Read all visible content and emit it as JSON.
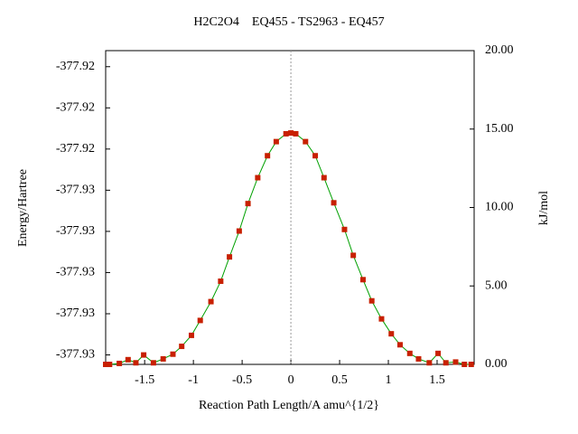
{
  "chart_data": {
    "type": "line",
    "title": "H2C2O4    EQ455 - TS2963 - EQ457",
    "x_label": "Reaction Path Length/A amu^{1/2}",
    "y_label": "Energy/Hartree",
    "y2_label": "kJ/mol",
    "xlim": [
      -1.9,
      1.88
    ],
    "xticks": [
      -1.5,
      -1,
      -0.5,
      0,
      0.5,
      1,
      1.5
    ],
    "ylim": [
      -377.93003,
      -377.92241
    ],
    "yticks": [
      {
        "value": -377.9298,
        "label": "-377.93"
      },
      {
        "value": -377.9288,
        "label": "-377.93"
      },
      {
        "value": -377.9278,
        "label": "-377.93"
      },
      {
        "value": -377.9268,
        "label": "-377.93"
      },
      {
        "value": -377.9258,
        "label": "-377.93"
      },
      {
        "value": -377.9248,
        "label": "-377.92"
      },
      {
        "value": -377.9238,
        "label": "-377.92"
      },
      {
        "value": -377.9228,
        "label": "-377.92"
      }
    ],
    "y2lim": [
      0,
      20
    ],
    "y2ticks": [
      {
        "value": 0,
        "label": "0.00"
      },
      {
        "value": 5,
        "label": "5.00"
      },
      {
        "value": 10,
        "label": "10.00"
      },
      {
        "value": 15,
        "label": "15.00"
      },
      {
        "value": 20,
        "label": "20.00"
      }
    ],
    "x": [
      -1.9,
      -1.86,
      -1.76,
      -1.67,
      -1.59,
      -1.51,
      -1.41,
      -1.31,
      -1.21,
      -1.12,
      -1.02,
      -0.93,
      -0.82,
      -0.72,
      -0.63,
      -0.53,
      -0.44,
      -0.34,
      -0.24,
      -0.15,
      -0.05,
      0,
      0.05,
      0.15,
      0.25,
      0.34,
      0.44,
      0.55,
      0.64,
      0.74,
      0.83,
      0.93,
      1.03,
      1.12,
      1.22,
      1.31,
      1.42,
      1.51,
      1.59,
      1.69,
      1.78,
      1.85
    ],
    "series": [
      {
        "axis": "y2",
        "color": "#00a000",
        "marker_color": "#c82000",
        "values": [
          0,
          0,
          0.06,
          0.3,
          0.1,
          0.6,
          0.1,
          0.35,
          0.65,
          1.15,
          1.85,
          2.8,
          4.0,
          5.3,
          6.85,
          8.5,
          10.25,
          11.9,
          13.3,
          14.2,
          14.7,
          14.75,
          14.7,
          14.2,
          13.3,
          11.9,
          10.3,
          8.6,
          6.95,
          5.4,
          4.05,
          2.9,
          1.95,
          1.25,
          0.7,
          0.35,
          0.1,
          0.7,
          0.1,
          0.15,
          0,
          0
        ]
      }
    ]
  }
}
